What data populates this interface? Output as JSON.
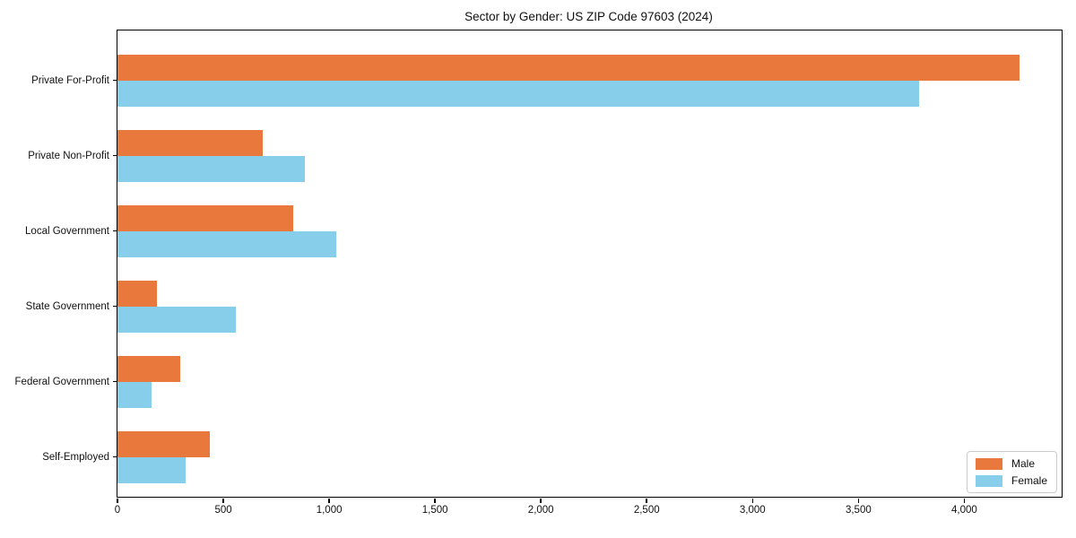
{
  "title": "Sector by Gender: US ZIP Code 97603 (2024)",
  "colors": {
    "male": "#e8783c",
    "female": "#87ceeb",
    "axis": "#000000",
    "text": "#111111",
    "legend_border": "#cccccc",
    "background": "#ffffff"
  },
  "legend": {
    "position": "lower right",
    "items": [
      {
        "label": "Male",
        "color": "#e8783c"
      },
      {
        "label": "Female",
        "color": "#87ceeb"
      }
    ]
  },
  "chart_data": {
    "type": "bar",
    "orientation": "horizontal",
    "title": "Sector by Gender: US ZIP Code 97603 (2024)",
    "categories": [
      "Private For-Profit",
      "Private Non-Profit",
      "Local Government",
      "State Government",
      "Federal Government",
      "Self-Employed"
    ],
    "series": [
      {
        "name": "Male",
        "color": "#e8783c",
        "values": [
          4260,
          685,
          830,
          185,
          295,
          435
        ]
      },
      {
        "name": "Female",
        "color": "#87ceeb",
        "values": [
          3785,
          885,
          1035,
          560,
          160,
          320
        ]
      }
    ],
    "xlabel": "",
    "ylabel": "",
    "xlim": [
      0,
      4460
    ],
    "xticks": [
      0,
      500,
      1000,
      1500,
      2000,
      2500,
      3000,
      3500,
      4000
    ],
    "xtick_labels": [
      "0",
      "500",
      "1,000",
      "1,500",
      "2,000",
      "2,500",
      "3,000",
      "3,500",
      "4,000"
    ],
    "grid": false,
    "legend_position": "lower right"
  }
}
